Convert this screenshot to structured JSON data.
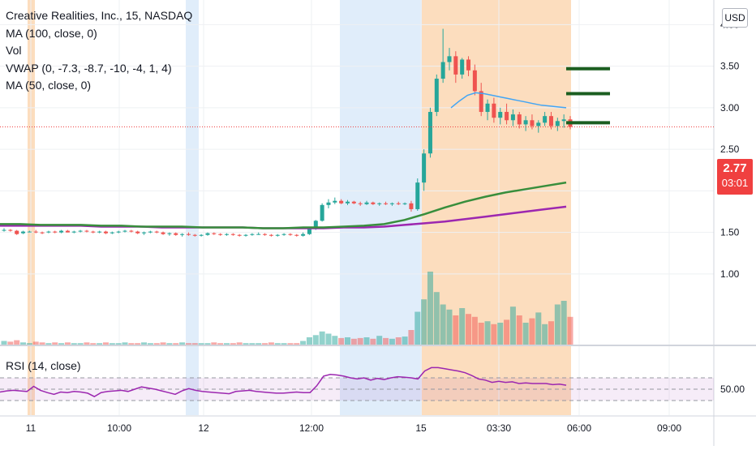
{
  "legend": {
    "title": "Creative Realities, Inc., 15, NASDAQ",
    "ma100": "MA (100, close, 0)",
    "vol": "Vol",
    "vwap": "VWAP (0, -7.3, -8.7, -10, -4, 1, 4)",
    "ma50": "MA (50, close, 0)"
  },
  "currency_button": "USD",
  "last_price": {
    "price": "2.77",
    "countdown": "03:01"
  },
  "rsi_label": "RSI (14, close)",
  "colors": {
    "up": "#26a69a",
    "down": "#ef5350",
    "ma50": "#388e3c",
    "ma100": "#9c27b0",
    "vwap": "#42a5f5",
    "rsi": "#9c27b0",
    "premarket_bg": "#fbd7b3",
    "afterhours_bg": "#dbeaf9",
    "last_price": "#f04040",
    "levels": "#1b5e20"
  },
  "chart_data": [
    {
      "type": "candlestick",
      "price_axis": {
        "ticks": [
          1.0,
          1.5,
          2.0,
          2.5,
          3.0,
          3.5,
          4.0
        ],
        "range": [
          0.55,
          4.35
        ]
      },
      "time_axis": {
        "labels": [
          "11",
          "10:00",
          "12",
          "12:00",
          "15",
          "03:30",
          "06:00",
          "09:00"
        ]
      },
      "last_price": 2.77,
      "ohlc": [
        [
          1.53,
          1.55,
          1.51,
          1.53
        ],
        [
          1.53,
          1.54,
          1.51,
          1.52
        ],
        [
          1.52,
          1.53,
          1.47,
          1.48
        ],
        [
          1.49,
          1.52,
          1.48,
          1.51
        ],
        [
          1.51,
          1.52,
          1.5,
          1.51
        ],
        [
          1.51,
          1.53,
          1.49,
          1.5
        ],
        [
          1.5,
          1.51,
          1.48,
          1.49
        ],
        [
          1.5,
          1.52,
          1.49,
          1.51
        ],
        [
          1.51,
          1.52,
          1.49,
          1.5
        ],
        [
          1.5,
          1.53,
          1.49,
          1.52
        ],
        [
          1.52,
          1.53,
          1.5,
          1.5
        ],
        [
          1.5,
          1.52,
          1.49,
          1.51
        ],
        [
          1.51,
          1.53,
          1.5,
          1.52
        ],
        [
          1.52,
          1.53,
          1.5,
          1.51
        ],
        [
          1.51,
          1.52,
          1.49,
          1.5
        ],
        [
          1.5,
          1.52,
          1.49,
          1.51
        ],
        [
          1.51,
          1.52,
          1.48,
          1.49
        ],
        [
          1.49,
          1.51,
          1.48,
          1.5
        ],
        [
          1.5,
          1.52,
          1.49,
          1.51
        ],
        [
          1.51,
          1.53,
          1.5,
          1.52
        ],
        [
          1.52,
          1.53,
          1.5,
          1.51
        ],
        [
          1.51,
          1.52,
          1.48,
          1.49
        ],
        [
          1.49,
          1.51,
          1.47,
          1.5
        ],
        [
          1.5,
          1.52,
          1.49,
          1.51
        ],
        [
          1.51,
          1.52,
          1.49,
          1.5
        ],
        [
          1.5,
          1.51,
          1.47,
          1.48
        ],
        [
          1.48,
          1.5,
          1.46,
          1.49
        ],
        [
          1.49,
          1.5,
          1.46,
          1.47
        ],
        [
          1.47,
          1.49,
          1.45,
          1.48
        ],
        [
          1.48,
          1.5,
          1.46,
          1.47
        ],
        [
          1.47,
          1.48,
          1.45,
          1.46
        ],
        [
          1.46,
          1.48,
          1.45,
          1.47
        ],
        [
          1.47,
          1.5,
          1.46,
          1.49
        ],
        [
          1.49,
          1.5,
          1.47,
          1.48
        ],
        [
          1.48,
          1.49,
          1.46,
          1.47
        ],
        [
          1.47,
          1.49,
          1.46,
          1.48
        ],
        [
          1.48,
          1.49,
          1.46,
          1.47
        ],
        [
          1.47,
          1.48,
          1.45,
          1.46
        ],
        [
          1.46,
          1.48,
          1.45,
          1.47
        ],
        [
          1.47,
          1.49,
          1.46,
          1.48
        ],
        [
          1.48,
          1.5,
          1.47,
          1.48
        ],
        [
          1.48,
          1.49,
          1.46,
          1.47
        ],
        [
          1.47,
          1.48,
          1.45,
          1.46
        ],
        [
          1.46,
          1.48,
          1.45,
          1.47
        ],
        [
          1.47,
          1.49,
          1.46,
          1.48
        ],
        [
          1.48,
          1.49,
          1.46,
          1.47
        ],
        [
          1.47,
          1.48,
          1.45,
          1.46
        ],
        [
          1.46,
          1.5,
          1.45,
          1.48
        ],
        [
          1.48,
          1.55,
          1.47,
          1.54
        ],
        [
          1.54,
          1.65,
          1.53,
          1.64
        ],
        [
          1.64,
          1.85,
          1.63,
          1.83
        ],
        [
          1.83,
          1.9,
          1.79,
          1.86
        ],
        [
          1.86,
          1.92,
          1.84,
          1.88
        ],
        [
          1.88,
          1.9,
          1.84,
          1.85
        ],
        [
          1.85,
          1.89,
          1.83,
          1.87
        ],
        [
          1.87,
          1.88,
          1.84,
          1.85
        ],
        [
          1.85,
          1.87,
          1.82,
          1.84
        ],
        [
          1.84,
          1.88,
          1.83,
          1.86
        ],
        [
          1.86,
          1.87,
          1.83,
          1.84
        ],
        [
          1.84,
          1.86,
          1.82,
          1.85
        ],
        [
          1.85,
          1.87,
          1.83,
          1.84
        ],
        [
          1.84,
          1.86,
          1.82,
          1.85
        ],
        [
          1.85,
          1.87,
          1.83,
          1.84
        ],
        [
          1.84,
          1.86,
          1.83,
          1.85
        ],
        [
          1.85,
          1.88,
          1.75,
          1.78
        ],
        [
          1.78,
          2.15,
          1.76,
          2.1
        ],
        [
          2.1,
          2.5,
          2.0,
          2.45
        ],
        [
          2.45,
          3.0,
          2.4,
          2.95
        ],
        [
          2.95,
          3.4,
          2.9,
          3.35
        ],
        [
          3.35,
          3.95,
          3.3,
          3.55
        ],
        [
          3.55,
          3.72,
          3.45,
          3.62
        ],
        [
          3.62,
          3.68,
          3.3,
          3.4
        ],
        [
          3.4,
          3.6,
          3.35,
          3.58
        ],
        [
          3.58,
          3.62,
          3.38,
          3.45
        ],
        [
          3.45,
          3.52,
          3.15,
          3.2
        ],
        [
          3.2,
          3.3,
          2.9,
          2.95
        ],
        [
          2.95,
          3.1,
          2.85,
          3.05
        ],
        [
          3.05,
          3.12,
          2.82,
          2.88
        ],
        [
          2.88,
          3.0,
          2.8,
          2.95
        ],
        [
          2.95,
          3.05,
          2.8,
          2.85
        ],
        [
          2.85,
          2.98,
          2.78,
          2.92
        ],
        [
          2.92,
          2.95,
          2.75,
          2.8
        ],
        [
          2.8,
          2.9,
          2.72,
          2.85
        ],
        [
          2.85,
          2.92,
          2.74,
          2.78
        ],
        [
          2.78,
          2.85,
          2.7,
          2.82
        ],
        [
          2.82,
          2.95,
          2.78,
          2.9
        ],
        [
          2.9,
          2.95,
          2.74,
          2.78
        ],
        [
          2.78,
          2.88,
          2.72,
          2.84
        ],
        [
          2.84,
          2.92,
          2.76,
          2.86
        ],
        [
          2.86,
          2.9,
          2.74,
          2.77
        ]
      ],
      "volume_visible": [
        0.05,
        0.04,
        0.06,
        0.03,
        0.02,
        0.04,
        0.03,
        0.02,
        0.03,
        0.02,
        0.03,
        0.02,
        0.02,
        0.03,
        0.02,
        0.02,
        0.03,
        0.02,
        0.02,
        0.03,
        0.02,
        0.02,
        0.03,
        0.02,
        0.02,
        0.03,
        0.02,
        0.02,
        0.03,
        0.02,
        0.02,
        0.02,
        0.02,
        0.03,
        0.02,
        0.02,
        0.02,
        0.03,
        0.02,
        0.02,
        0.02,
        0.02,
        0.03,
        0.02,
        0.02,
        0.02,
        0.02,
        0.05,
        0.1,
        0.13,
        0.18,
        0.15,
        0.12,
        0.09,
        0.1,
        0.08,
        0.09,
        0.1,
        0.08,
        0.12,
        0.09,
        0.08,
        0.1,
        0.11,
        0.2,
        0.45,
        0.62,
        1.0,
        0.72,
        0.55,
        0.48,
        0.4,
        0.5,
        0.42,
        0.38,
        0.3,
        0.32,
        0.28,
        0.3,
        0.34,
        0.52,
        0.4,
        0.3,
        0.36,
        0.44,
        0.28,
        0.32,
        0.55,
        0.6,
        0.38
      ],
      "lines": [
        {
          "name": "MA (50, close, 0)",
          "values": [
            1.6,
            1.6,
            1.59,
            1.59,
            1.59,
            1.58,
            1.58,
            1.57,
            1.57,
            1.57,
            1.56,
            1.56,
            1.56,
            1.55,
            1.55,
            1.56,
            1.56,
            1.57,
            1.58,
            1.6,
            1.65,
            1.72,
            1.8,
            1.87,
            1.93,
            1.98,
            2.02,
            2.06,
            2.1
          ]
        },
        {
          "name": "MA (100, close, 0)",
          "values": [
            1.58,
            1.58,
            1.58,
            1.58,
            1.58,
            1.57,
            1.57,
            1.57,
            1.56,
            1.56,
            1.56,
            1.56,
            1.56,
            1.55,
            1.55,
            1.55,
            1.55,
            1.56,
            1.56,
            1.57,
            1.59,
            1.61,
            1.63,
            1.66,
            1.69,
            1.72,
            1.75,
            1.78,
            1.81
          ]
        },
        {
          "name": "VWAP",
          "values": [
            3.0,
            3.08,
            3.15,
            3.18,
            3.17,
            3.15,
            3.13,
            3.11,
            3.09,
            3.07,
            3.05,
            3.03,
            3.02,
            3.01,
            3.0
          ]
        }
      ],
      "levels": [
        3.47,
        3.17,
        2.82
      ]
    },
    {
      "type": "line",
      "name": "RSI (14, close)",
      "y_ticks": [
        50.0
      ],
      "bands": [
        30,
        70
      ],
      "values": [
        45,
        47,
        48,
        47,
        46,
        55,
        48,
        44,
        41,
        45,
        44,
        46,
        45,
        43,
        37,
        44,
        46,
        47,
        48,
        46,
        50,
        54,
        52,
        50,
        47,
        44,
        41,
        47,
        51,
        48,
        46,
        45,
        44,
        43,
        42,
        46,
        47,
        48,
        46,
        45,
        44,
        43,
        43,
        44,
        45,
        44,
        44,
        56,
        73,
        76,
        75,
        73,
        70,
        68,
        70,
        66,
        69,
        67,
        70,
        72,
        71,
        70,
        68,
        82,
        88,
        88,
        86,
        84,
        82,
        79,
        74,
        68,
        66,
        62,
        64,
        62,
        63,
        60,
        61,
        60,
        60,
        60,
        58,
        59,
        57
      ]
    }
  ]
}
